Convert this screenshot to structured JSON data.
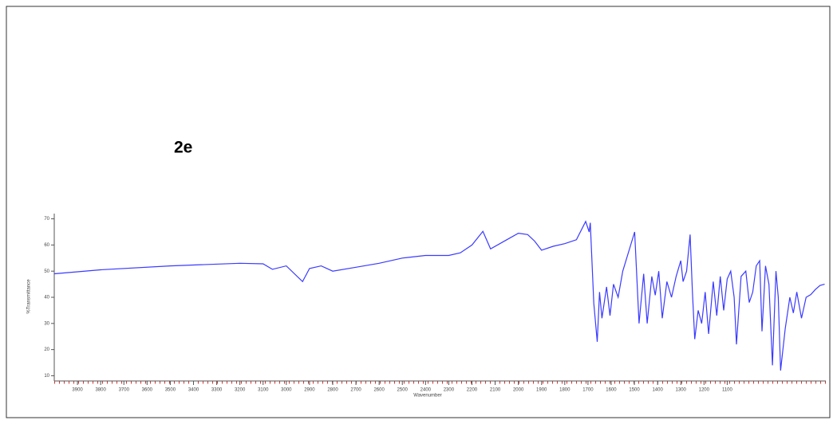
{
  "chart_data": {
    "type": "line",
    "title": "2e",
    "x_label": "Wavenumber",
    "y_label": "%Transmittance",
    "color": "#3a3aff",
    "xlim": [
      4000,
      675
    ],
    "ylim": [
      8,
      72
    ],
    "xticks": [
      3900,
      3800,
      3700,
      3600,
      3500,
      3400,
      3300,
      3200,
      3100,
      3000,
      2900,
      2800,
      2700,
      2600,
      2500,
      2400,
      2300,
      2200,
      2100,
      2000,
      1900,
      1800,
      1700,
      1600,
      1500,
      1400,
      1300,
      1200,
      1100
    ],
    "yticks": [
      10,
      20,
      30,
      40,
      50,
      60,
      70
    ],
    "x": [
      4000,
      3800,
      3500,
      3200,
      3100,
      3060,
      3000,
      2930,
      2900,
      2850,
      2800,
      2700,
      2600,
      2500,
      2400,
      2300,
      2250,
      2200,
      2153,
      2120,
      2050,
      2000,
      1960,
      1930,
      1900,
      1850,
      1800,
      1750,
      1710,
      1695,
      1690,
      1675,
      1660,
      1650,
      1640,
      1620,
      1605,
      1590,
      1570,
      1550,
      1499,
      1480,
      1460,
      1445,
      1425,
      1410,
      1395,
      1380,
      1360,
      1340,
      1320,
      1300,
      1290,
      1275,
      1260,
      1250,
      1240,
      1225,
      1210,
      1195,
      1180,
      1160,
      1145,
      1130,
      1115,
      1100,
      1085,
      1070,
      1060,
      1040,
      1020,
      1005,
      990,
      975,
      960,
      950,
      935,
      920,
      905,
      890,
      880,
      870,
      850,
      830,
      815,
      800,
      780,
      760,
      740,
      720,
      700,
      680
    ],
    "values": [
      49,
      50.5,
      52,
      53,
      52.8,
      50.7,
      52,
      46,
      51,
      52,
      50,
      51.5,
      53,
      55,
      56,
      56,
      57,
      60,
      65.2,
      58.5,
      62,
      64.5,
      64,
      61.5,
      58,
      59.5,
      60.5,
      62,
      69,
      65,
      68.5,
      37.7,
      23,
      42,
      32,
      44,
      33,
      45,
      40,
      50,
      65,
      30,
      49,
      30,
      48,
      40.8,
      50,
      32,
      46,
      40,
      48,
      54,
      46,
      50,
      64,
      42,
      24,
      35,
      30,
      42,
      26,
      46,
      33,
      48,
      35,
      47,
      50,
      40,
      22,
      48,
      50,
      38,
      42,
      52,
      54,
      27,
      52,
      45,
      14,
      50,
      40,
      12,
      28,
      40,
      34,
      42,
      32,
      40,
      41,
      43,
      44.5,
      45
    ]
  }
}
